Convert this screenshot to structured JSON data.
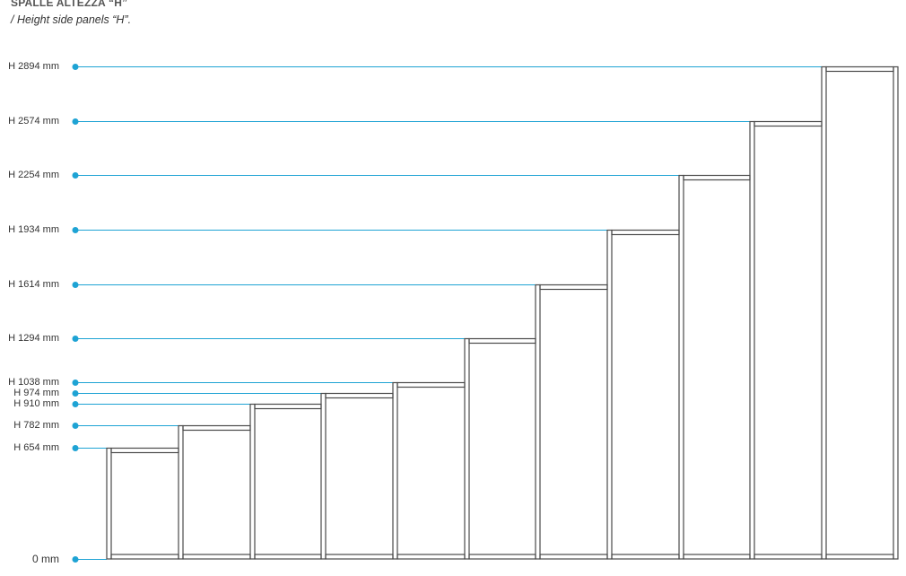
{
  "header": {
    "title": "SPALLE ALTEZZA “H”",
    "subtitle": "/ Height side panels “H”."
  },
  "colors": {
    "accent": "#1ea3d4",
    "line": "#4a4a4a"
  },
  "levels": [
    {
      "value": 0,
      "label": "0 mm"
    },
    {
      "value": 654,
      "label": "H 654 mm"
    },
    {
      "value": 782,
      "label": "H 782 mm"
    },
    {
      "value": 910,
      "label": "H 910 mm"
    },
    {
      "value": 974,
      "label": "H 974 mm"
    },
    {
      "value": 1038,
      "label": "H 1038 mm"
    },
    {
      "value": 1294,
      "label": "H 1294 mm"
    },
    {
      "value": 1614,
      "label": "H 1614 mm"
    },
    {
      "value": 1934,
      "label": "H 1934 mm"
    },
    {
      "value": 2254,
      "label": "H 2254 mm"
    },
    {
      "value": 2574,
      "label": "H 2574 mm"
    },
    {
      "value": 2894,
      "label": "H 2894 mm"
    }
  ]
}
